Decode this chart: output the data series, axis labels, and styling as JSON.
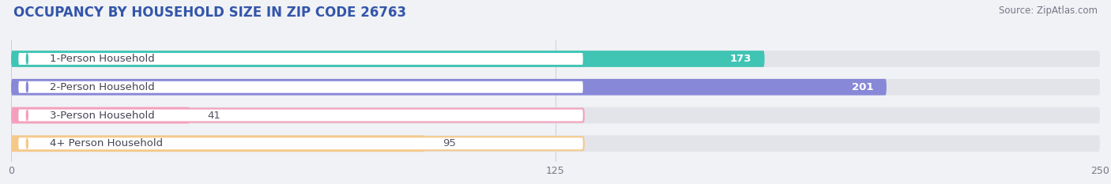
{
  "title": "OCCUPANCY BY HOUSEHOLD SIZE IN ZIP CODE 26763",
  "source": "Source: ZipAtlas.com",
  "categories": [
    "1-Person Household",
    "2-Person Household",
    "3-Person Household",
    "4+ Person Household"
  ],
  "values": [
    173,
    201,
    41,
    95
  ],
  "bar_colors": [
    "#40c4b4",
    "#8888d8",
    "#f4a0bc",
    "#f5c98a"
  ],
  "xlim": [
    0,
    250
  ],
  "xticks": [
    0,
    125,
    250
  ],
  "background_color": "#f0f2f5",
  "bar_bg_color": "#e2e4e9",
  "title_fontsize": 12,
  "source_fontsize": 8.5,
  "label_fontsize": 9.5,
  "value_fontsize": 9.5,
  "value_colors_inside": [
    "white",
    "white",
    null,
    null
  ],
  "value_threshold": 100
}
